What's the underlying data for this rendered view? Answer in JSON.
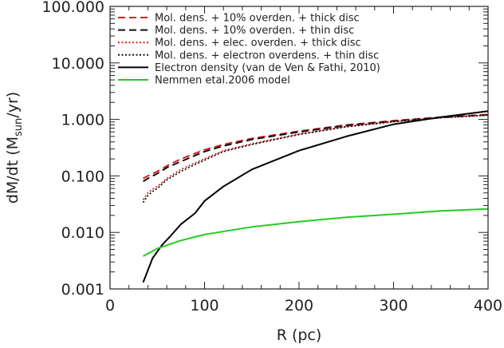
{
  "chart_data": {
    "type": "line",
    "xlabel": "R (pc)",
    "ylabel": {
      "pre": "dM/dt (M",
      "sub": "sun",
      "post": "/yr)"
    },
    "xlim": [
      0,
      400
    ],
    "ylim": [
      0.001,
      100
    ],
    "yscale": "log",
    "x_ticks": [
      0,
      100,
      200,
      300,
      400
    ],
    "x_tick_labels": [
      "0",
      "100",
      "200",
      "300",
      "400"
    ],
    "y_ticks": [
      0.001,
      0.01,
      0.1,
      1,
      10,
      100
    ],
    "y_tick_labels": [
      "0.001",
      "0.010",
      "0.100",
      "1.000",
      "10.000",
      "100.000"
    ],
    "grid": false,
    "legend_position": "top-right",
    "series": [
      {
        "name": "Mol. dens. + 10% overden. + thick disc",
        "color": "#d62020",
        "style": "dashed",
        "x": [
          35,
          40,
          50,
          60,
          75,
          90,
          100,
          120,
          150,
          200,
          250,
          300,
          350,
          400
        ],
        "y": [
          0.09,
          0.1,
          0.12,
          0.15,
          0.2,
          0.25,
          0.29,
          0.36,
          0.46,
          0.62,
          0.8,
          0.95,
          1.1,
          1.22
        ]
      },
      {
        "name": "Mol. dens. + 10% overden. + thin disc",
        "color": "#111111",
        "style": "dashed",
        "x": [
          35,
          40,
          50,
          60,
          75,
          90,
          100,
          120,
          150,
          200,
          250,
          300,
          350,
          400
        ],
        "y": [
          0.08,
          0.09,
          0.11,
          0.14,
          0.18,
          0.23,
          0.27,
          0.34,
          0.44,
          0.6,
          0.78,
          0.93,
          1.08,
          1.2
        ]
      },
      {
        "name": "Mol. dens. + elec. overden. + thick disc",
        "color": "#d62020",
        "style": "dotted",
        "x": [
          35,
          40,
          45,
          50,
          60,
          75,
          90,
          100,
          120,
          150,
          200,
          250,
          300,
          350,
          400
        ],
        "y": [
          0.038,
          0.05,
          0.058,
          0.065,
          0.09,
          0.13,
          0.17,
          0.2,
          0.28,
          0.37,
          0.55,
          0.75,
          0.92,
          1.08,
          1.2
        ]
      },
      {
        "name": "Mol. dens. + electron overdens. + thin disc",
        "color": "#111111",
        "style": "dotted",
        "x": [
          35,
          40,
          45,
          50,
          60,
          75,
          90,
          100,
          120,
          150,
          200,
          250,
          300,
          350,
          400
        ],
        "y": [
          0.034,
          0.045,
          0.053,
          0.06,
          0.085,
          0.12,
          0.16,
          0.19,
          0.27,
          0.36,
          0.54,
          0.74,
          0.91,
          1.07,
          1.19
        ]
      },
      {
        "name": "Electron density (van de Ven & Fathi, 2010)",
        "color": "#000000",
        "style": "solid",
        "x": [
          35,
          45,
          55,
          65,
          75,
          90,
          100,
          120,
          150,
          200,
          250,
          300,
          350,
          400
        ],
        "y": [
          0.0013,
          0.0035,
          0.006,
          0.009,
          0.014,
          0.022,
          0.036,
          0.065,
          0.13,
          0.28,
          0.5,
          0.82,
          1.1,
          1.4
        ]
      },
      {
        "name": "Nemmen etal.2006 model",
        "color": "#22cc22",
        "style": "solid",
        "x": [
          35,
          50,
          75,
          100,
          150,
          200,
          250,
          300,
          350,
          400
        ],
        "y": [
          0.0038,
          0.0052,
          0.0072,
          0.0092,
          0.0125,
          0.0155,
          0.0185,
          0.021,
          0.024,
          0.026
        ]
      }
    ]
  }
}
